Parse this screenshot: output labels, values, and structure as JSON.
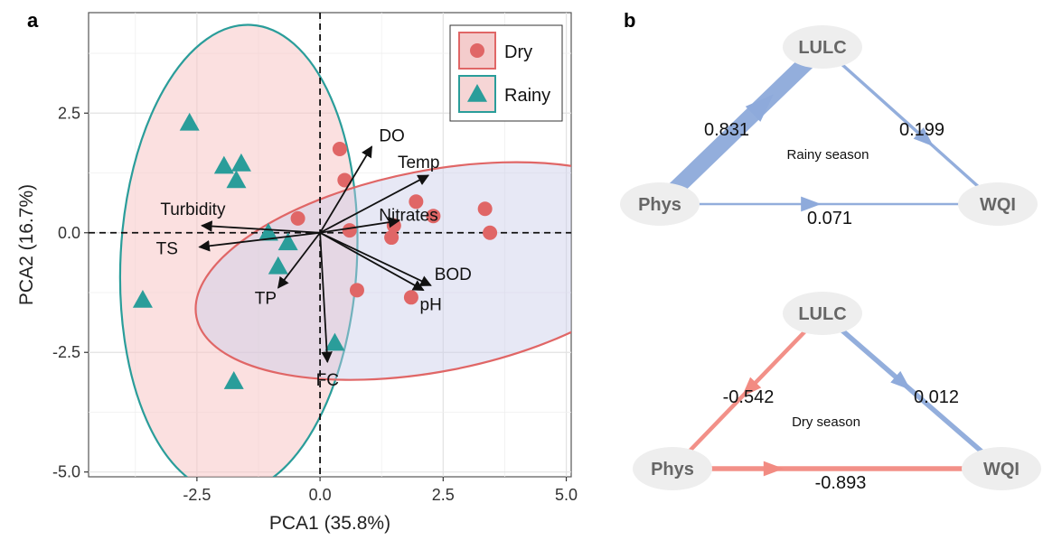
{
  "chart_data": [
    {
      "type": "scatter",
      "panel_label": "a",
      "xlabel": "PCA1 (35.8%)",
      "ylabel": "PCA2 (16.7%)",
      "xlim": [
        -4.7,
        5.1
      ],
      "ylim": [
        -5.1,
        4.6
      ],
      "xticks": [
        -2.5,
        0.0,
        2.5,
        5.0
      ],
      "xtick_labels": [
        "-2.5",
        "0.0",
        "2.5",
        "5.0"
      ],
      "yticks": [
        -5.0,
        -2.5,
        0.0,
        2.5
      ],
      "ytick_labels": [
        "-5.0",
        "-2.5",
        "0.0",
        "2.5"
      ],
      "grid": true,
      "legend_position": "top-right",
      "series": [
        {
          "name": "Dry",
          "marker": "circle",
          "color": "#e06666",
          "fill": "#f4cccc",
          "points": [
            [
              0.4,
              1.75
            ],
            [
              0.5,
              1.1
            ],
            [
              -0.45,
              0.3
            ],
            [
              0.6,
              0.05
            ],
            [
              1.95,
              0.65
            ],
            [
              2.3,
              0.35
            ],
            [
              1.5,
              0.15
            ],
            [
              1.45,
              -0.1
            ],
            [
              3.35,
              0.5
            ],
            [
              3.45,
              0.0
            ],
            [
              0.75,
              -1.2
            ],
            [
              1.85,
              -1.35
            ]
          ],
          "ellipse": {
            "center": [
              2.3,
              -0.8
            ],
            "rx": 4.9,
            "ry": 2.1,
            "angle": -11
          }
        },
        {
          "name": "Rainy",
          "marker": "triangle",
          "color": "#2a9d9a",
          "fill": "#f6d5d5",
          "points": [
            [
              -2.65,
              2.3
            ],
            [
              -1.95,
              1.4
            ],
            [
              -1.6,
              1.45
            ],
            [
              -1.7,
              1.1
            ],
            [
              -1.05,
              0.0
            ],
            [
              -0.65,
              -0.2
            ],
            [
              -0.85,
              -0.7
            ],
            [
              -3.6,
              -1.4
            ],
            [
              0.3,
              -2.3
            ],
            [
              -1.75,
              -3.1
            ]
          ],
          "ellipse": {
            "center": [
              -1.65,
              -0.55
            ],
            "rx": 2.4,
            "ry": 4.9,
            "angle": 3
          }
        }
      ],
      "loadings": [
        {
          "label": "DO",
          "x": 1.05,
          "y": 1.8
        },
        {
          "label": "Temp",
          "x": 2.2,
          "y": 1.2
        },
        {
          "label": "Nitrates",
          "x": 1.6,
          "y": 0.25
        },
        {
          "label": "BOD",
          "x": 2.25,
          "y": -1.1
        },
        {
          "label": "pH",
          "x": 2.1,
          "y": -1.2
        },
        {
          "label": "FC",
          "x": 0.15,
          "y": -2.7
        },
        {
          "label": "TP",
          "x": -0.85,
          "y": -1.15
        },
        {
          "label": "TS",
          "x": -2.45,
          "y": -0.3
        },
        {
          "label": "Turbidity",
          "x": -2.4,
          "y": 0.15
        }
      ]
    },
    {
      "type": "diagram",
      "panel_label": "b",
      "diagrams": [
        {
          "title": "Rainy season",
          "nodes": [
            "LULC",
            "Phys",
            "WQI"
          ],
          "edges": [
            {
              "from": "Phys",
              "to": "LULC",
              "value": "0.831",
              "color": "#8eaadb"
            },
            {
              "from": "LULC",
              "to": "WQI",
              "value": "0.199",
              "color": "#8eaadb"
            },
            {
              "from": "Phys",
              "to": "WQI",
              "value": "0.071",
              "color": "#8eaadb"
            }
          ]
        },
        {
          "title": "Dry season",
          "nodes": [
            "LULC",
            "Phys",
            "WQI"
          ],
          "edges": [
            {
              "from": "LULC",
              "to": "Phys",
              "value": "-0.542",
              "color": "#f28b82"
            },
            {
              "from": "LULC",
              "to": "WQI",
              "value": "0.012",
              "color": "#8eaadb"
            },
            {
              "from": "Phys",
              "to": "WQI",
              "value": "-0.893",
              "color": "#f28b82"
            }
          ]
        }
      ]
    }
  ]
}
